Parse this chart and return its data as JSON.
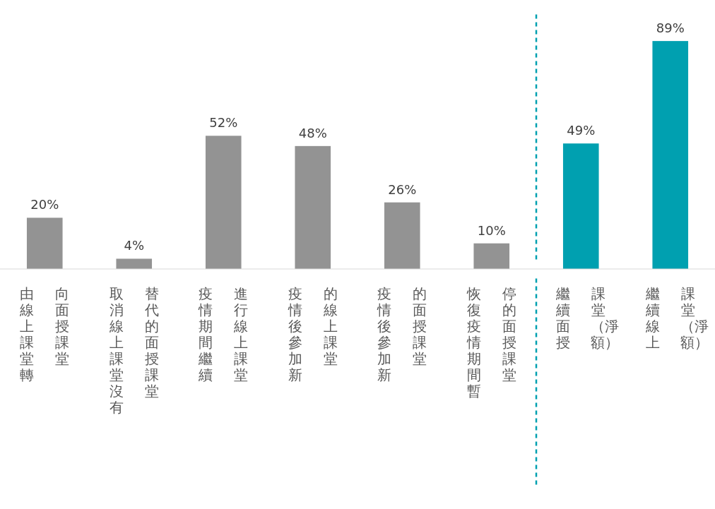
{
  "chart_data": {
    "type": "bar",
    "categories": [
      "由線上課堂轉向面授課堂",
      "取消線上課堂沒有替代的面授課堂",
      "疫情期間繼續進行線上課堂",
      "疫情後參加新的線上課堂",
      "疫情後參加新的面授課堂",
      "恢復疫情期間暫停的面授課堂",
      "繼續面授課堂（淨額）",
      "繼續線上課堂（淨額）"
    ],
    "values": [
      20,
      4,
      52,
      48,
      26,
      10,
      49,
      89
    ],
    "colors": [
      "#939393",
      "#939393",
      "#939393",
      "#939393",
      "#939393",
      "#939393",
      "#00a0b0",
      "#00a0b0"
    ],
    "value_labels": [
      "20%",
      "4%",
      "52%",
      "48%",
      "26%",
      "10%",
      "49%",
      "89%"
    ]
  }
}
